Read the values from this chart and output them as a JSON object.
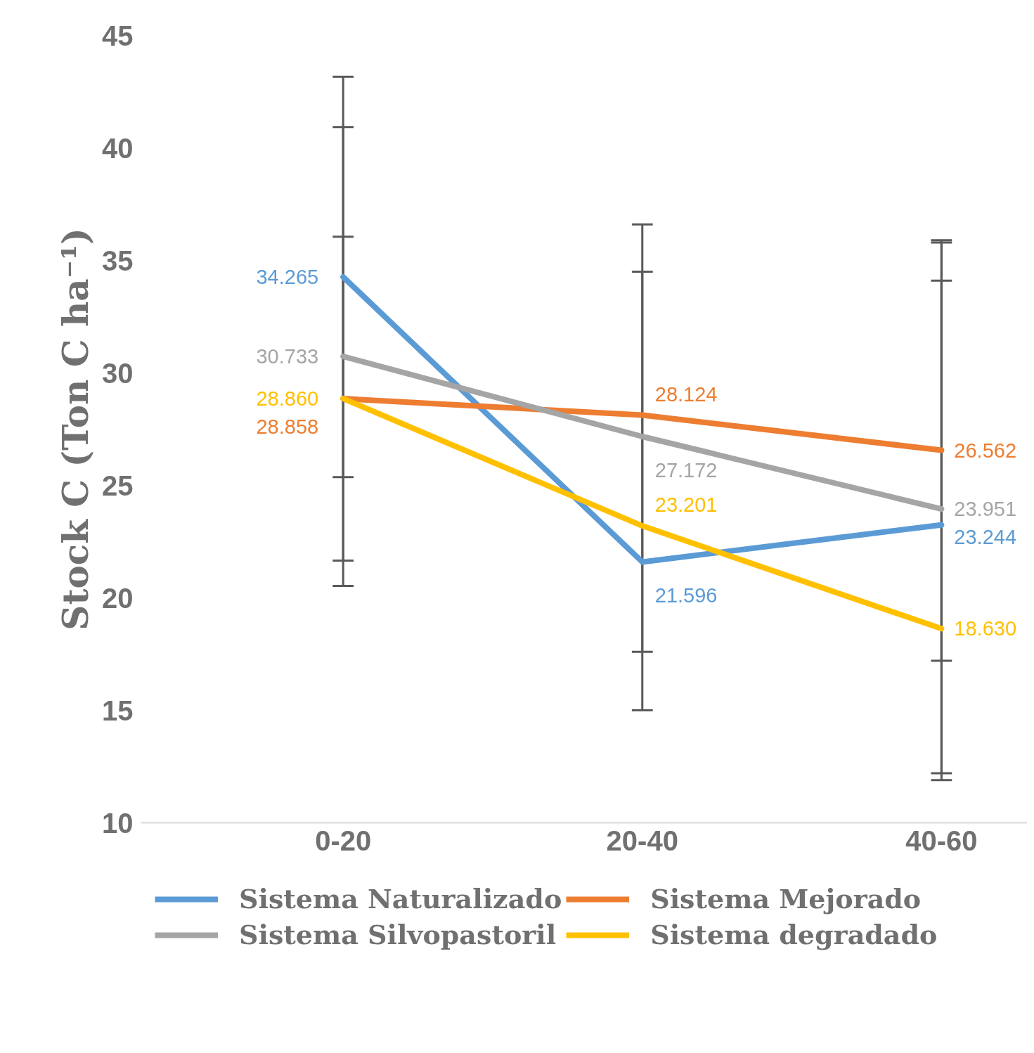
{
  "chart_data": {
    "type": "line",
    "ylabel": "Stock C (Ton C ha⁻¹)",
    "categories": [
      "0-20",
      "20-40",
      "40-60"
    ],
    "series": [
      {
        "name": "Sistema Naturalizado",
        "color": "#5b9bd5",
        "values": [
          34.265,
          21.596,
          23.244
        ],
        "value_labels": [
          "34.265",
          "21.596",
          "23.244"
        ],
        "errors": [
          8.9,
          null,
          [
            11.9,
            35.8
          ]
        ]
      },
      {
        "name": "Sistema Mejorado",
        "color": "#ed7d31",
        "values": [
          28.858,
          28.124,
          26.562
        ],
        "value_labels": [
          "28.858",
          "28.124",
          "26.562"
        ],
        "errors": [
          7.2,
          null,
          [
            17.2,
            34.1
          ]
        ]
      },
      {
        "name": "Sistema Silvopastoril",
        "color": "#a5a5a5",
        "values": [
          30.733,
          27.172,
          23.951
        ],
        "value_labels": [
          "30.733",
          "27.172",
          "23.951"
        ],
        "errors": [
          10.2,
          [
            17.6,
            36.6
          ],
          [
            12.2,
            35.9
          ]
        ]
      },
      {
        "name": "Sistema degradado",
        "color": "#ffc000",
        "values": [
          28.86,
          23.201,
          18.63
        ],
        "value_labels": [
          "28.860",
          "23.201",
          "18.630"
        ],
        "errors": [
          null,
          [
            15.0,
            34.5
          ],
          null
        ]
      }
    ],
    "ylim": [
      10,
      45
    ],
    "yticks": [
      10,
      15,
      20,
      25,
      30,
      35,
      40,
      45
    ],
    "grid": false,
    "legend": "bottom",
    "marker": "none",
    "line_style": "solid"
  }
}
